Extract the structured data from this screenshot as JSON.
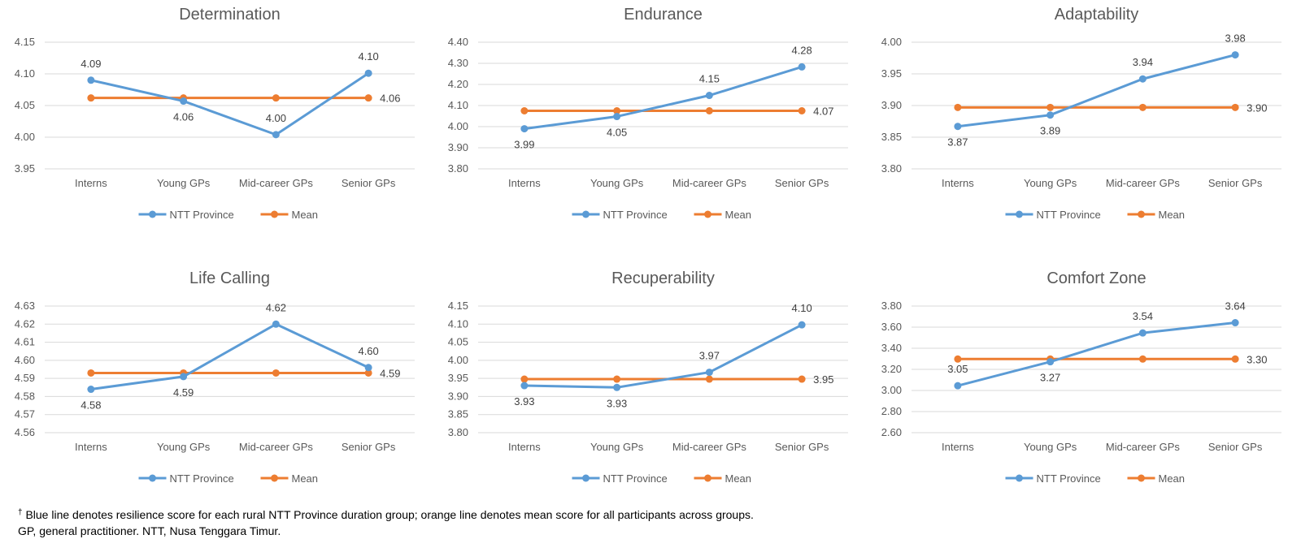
{
  "chart_data": [
    {
      "type": "line",
      "title": "Determination",
      "categories": [
        "Interns",
        "Young GPs",
        "Mid-career GPs",
        "Senior GPs"
      ],
      "ylim": [
        3.95,
        4.15
      ],
      "yticks": [
        "3.95",
        "4.00",
        "4.05",
        "4.10",
        "4.15"
      ],
      "series": [
        {
          "name": "NTT Province",
          "color": "#5B9BD5",
          "values": [
            4.09,
            4.057,
            4.004,
            4.101
          ],
          "labels": [
            "4.09",
            "4.06",
            "4.00",
            "4.10"
          ],
          "label_pos": [
            "above",
            "below",
            "above",
            "above"
          ]
        },
        {
          "name": "Mean",
          "color": "#ED7D31",
          "values": [
            4.062,
            4.062,
            4.062,
            4.062
          ],
          "labels": [
            "4.06"
          ],
          "label_pos": [
            "right"
          ]
        }
      ]
    },
    {
      "type": "line",
      "title": "Endurance",
      "categories": [
        "Interns",
        "Young GPs",
        "Mid-career GPs",
        "Senior GPs"
      ],
      "ylim": [
        3.8,
        4.4
      ],
      "yticks": [
        "3.80",
        "3.90",
        "4.00",
        "4.10",
        "4.20",
        "4.30",
        "4.40"
      ],
      "series": [
        {
          "name": "NTT Province",
          "color": "#5B9BD5",
          "values": [
            3.99,
            4.048,
            4.148,
            4.283
          ],
          "labels": [
            "3.99",
            "4.05",
            "4.15",
            "4.28"
          ],
          "label_pos": [
            "below",
            "below",
            "above",
            "above"
          ]
        },
        {
          "name": "Mean",
          "color": "#ED7D31",
          "values": [
            4.075,
            4.075,
            4.075,
            4.075
          ],
          "labels": [
            "4.07"
          ],
          "label_pos": [
            "right"
          ]
        }
      ]
    },
    {
      "type": "line",
      "title": "Adaptability",
      "categories": [
        "Interns",
        "Young GPs",
        "Mid-career GPs",
        "Senior GPs"
      ],
      "ylim": [
        3.8,
        4.0
      ],
      "yticks": [
        "3.80",
        "3.85",
        "3.90",
        "3.95",
        "4.00"
      ],
      "series": [
        {
          "name": "NTT Province",
          "color": "#5B9BD5",
          "values": [
            3.867,
            3.885,
            3.942,
            3.98
          ],
          "labels": [
            "3.87",
            "3.89",
            "3.94",
            "3.98"
          ],
          "label_pos": [
            "below",
            "below",
            "above",
            "above"
          ]
        },
        {
          "name": "Mean",
          "color": "#ED7D31",
          "values": [
            3.897,
            3.897,
            3.897,
            3.897
          ],
          "labels": [
            "3.90"
          ],
          "label_pos": [
            "right"
          ]
        }
      ]
    },
    {
      "type": "line",
      "title": "Life Calling",
      "categories": [
        "Interns",
        "Young GPs",
        "Mid-career GPs",
        "Senior GPs"
      ],
      "ylim": [
        4.56,
        4.63
      ],
      "yticks": [
        "4.56",
        "4.57",
        "4.58",
        "4.59",
        "4.60",
        "4.61",
        "4.62",
        "4.63"
      ],
      "series": [
        {
          "name": "NTT Province",
          "color": "#5B9BD5",
          "values": [
            4.584,
            4.591,
            4.62,
            4.596
          ],
          "labels": [
            "4.58",
            "4.59",
            "4.62",
            "4.60"
          ],
          "label_pos": [
            "below",
            "below",
            "above",
            "above"
          ]
        },
        {
          "name": "Mean",
          "color": "#ED7D31",
          "values": [
            4.593,
            4.593,
            4.593,
            4.593
          ],
          "labels": [
            "4.59"
          ],
          "label_pos": [
            "right"
          ]
        }
      ]
    },
    {
      "type": "line",
      "title": "Recuperability",
      "categories": [
        "Interns",
        "Young GPs",
        "Mid-career GPs",
        "Senior GPs"
      ],
      "ylim": [
        3.8,
        4.15
      ],
      "yticks": [
        "3.80",
        "3.85",
        "3.90",
        "3.95",
        "4.00",
        "4.05",
        "4.10",
        "4.15"
      ],
      "series": [
        {
          "name": "NTT Province",
          "color": "#5B9BD5",
          "values": [
            3.93,
            3.925,
            3.967,
            4.098
          ],
          "labels": [
            "3.93",
            "3.93",
            "3.97",
            "4.10"
          ],
          "label_pos": [
            "below",
            "below",
            "above",
            "above"
          ]
        },
        {
          "name": "Mean",
          "color": "#ED7D31",
          "values": [
            3.948,
            3.948,
            3.948,
            3.948
          ],
          "labels": [
            "3.95"
          ],
          "label_pos": [
            "right"
          ]
        }
      ]
    },
    {
      "type": "line",
      "title": "Comfort Zone",
      "categories": [
        "Interns",
        "Young GPs",
        "Mid-career GPs",
        "Senior GPs"
      ],
      "ylim": [
        2.6,
        3.8
      ],
      "yticks": [
        "2.60",
        "2.80",
        "3.00",
        "3.20",
        "3.40",
        "3.60",
        "3.80"
      ],
      "series": [
        {
          "name": "NTT Province",
          "color": "#5B9BD5",
          "values": [
            3.045,
            3.272,
            3.545,
            3.642
          ],
          "labels": [
            "3.05",
            "3.27",
            "3.54",
            "3.64"
          ],
          "label_pos": [
            "above",
            "below",
            "above",
            "above"
          ]
        },
        {
          "name": "Mean",
          "color": "#ED7D31",
          "values": [
            3.298,
            3.298,
            3.298,
            3.298
          ],
          "labels": [
            "3.30"
          ],
          "label_pos": [
            "right"
          ]
        }
      ]
    }
  ],
  "footnote": {
    "dagger": "†",
    "line1": " Blue line denotes resilience score for each rural NTT Province duration group; orange line denotes mean score for all participants across groups.",
    "line2": "GP, general practitioner. NTT, Nusa Tenggara Timur."
  }
}
